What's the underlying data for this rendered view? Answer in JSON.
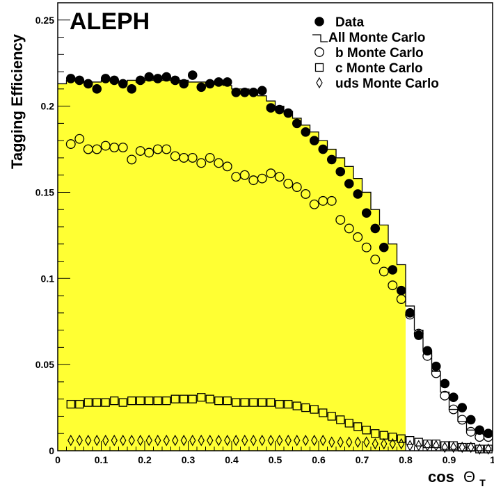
{
  "chart_data": {
    "type": "scatter",
    "title": "ALEPH",
    "xlabel": "cos",
    "xlabel_symbol": "Θ",
    "xlabel_subscript": "T",
    "ylabel": "Tagging Efficiency",
    "xlim": [
      0,
      1
    ],
    "ylim": [
      0,
      0.26
    ],
    "xticks": [
      0,
      0.1,
      0.2,
      0.3,
      0.4,
      0.5,
      0.6,
      0.7,
      0.8,
      0.9,
      1
    ],
    "xtick_labels": [
      "0",
      "0.1",
      "0.2",
      "0.3",
      "0.4",
      "0.5",
      "0.6",
      "0.7",
      "0.8",
      "0.9",
      "1"
    ],
    "yticks": [
      0,
      0.05,
      0.1,
      0.15,
      0.2,
      0.25
    ],
    "ytick_labels": [
      "0",
      "0.05",
      "0.1",
      "0.15",
      "0.2",
      "0.25"
    ],
    "legend_position": "top-right",
    "fill_color": "#ffff33",
    "fill_range": [
      0,
      0.8
    ],
    "x": [
      0.01,
      0.03,
      0.05,
      0.07,
      0.09,
      0.11,
      0.13,
      0.15,
      0.17,
      0.19,
      0.21,
      0.23,
      0.25,
      0.27,
      0.29,
      0.31,
      0.33,
      0.35,
      0.37,
      0.39,
      0.41,
      0.43,
      0.45,
      0.47,
      0.49,
      0.51,
      0.53,
      0.55,
      0.57,
      0.59,
      0.61,
      0.63,
      0.65,
      0.67,
      0.69,
      0.71,
      0.73,
      0.75,
      0.77,
      0.79,
      0.81,
      0.83,
      0.85,
      0.87,
      0.89,
      0.91,
      0.93,
      0.95,
      0.97,
      0.99
    ],
    "series": [
      {
        "name": "Data",
        "marker": "filled-circle",
        "values": [
          null,
          0.216,
          0.215,
          0.213,
          0.21,
          0.216,
          0.215,
          0.213,
          0.21,
          0.215,
          0.217,
          0.216,
          0.217,
          0.215,
          0.213,
          0.218,
          0.211,
          0.213,
          0.214,
          0.214,
          0.208,
          0.208,
          0.208,
          0.209,
          0.199,
          0.198,
          0.196,
          0.19,
          0.185,
          0.18,
          0.175,
          0.169,
          0.162,
          0.155,
          0.149,
          0.138,
          0.129,
          0.118,
          0.105,
          0.093,
          0.08,
          0.067,
          0.058,
          0.049,
          0.039,
          0.031,
          0.025,
          0.018,
          0.012,
          0.01
        ]
      },
      {
        "name": "All Monte Carlo",
        "marker": "histogram",
        "values": [
          0.213,
          0.215,
          0.215,
          0.214,
          0.214,
          0.215,
          0.215,
          0.214,
          0.215,
          0.214,
          0.215,
          0.215,
          0.215,
          0.215,
          0.215,
          0.214,
          0.214,
          0.213,
          0.213,
          0.212,
          0.21,
          0.21,
          0.209,
          0.206,
          0.203,
          0.2,
          0.197,
          0.193,
          0.189,
          0.185,
          0.18,
          0.175,
          0.17,
          0.165,
          0.158,
          0.15,
          0.14,
          0.131,
          0.12,
          0.108,
          0.084,
          0.07,
          0.058,
          0.046,
          0.034,
          0.024,
          0.017,
          0.012,
          0.01,
          0.009
        ]
      },
      {
        "name": "b Monte Carlo",
        "marker": "open-circle",
        "values": [
          null,
          0.178,
          0.181,
          0.175,
          0.175,
          0.177,
          0.176,
          0.176,
          0.169,
          0.174,
          0.173,
          0.175,
          0.175,
          0.171,
          0.17,
          0.17,
          0.167,
          0.17,
          0.167,
          0.165,
          0.159,
          0.16,
          0.157,
          0.158,
          0.161,
          0.159,
          0.155,
          0.153,
          0.149,
          0.143,
          0.145,
          0.145,
          0.134,
          0.129,
          0.124,
          0.118,
          0.111,
          0.104,
          0.096,
          0.088,
          0.079,
          0.068,
          0.055,
          0.045,
          0.032,
          0.024,
          0.018,
          0.011,
          0.008,
          0.008
        ]
      },
      {
        "name": "c Monte Carlo",
        "marker": "open-square",
        "values": [
          null,
          0.027,
          0.027,
          0.028,
          0.028,
          0.028,
          0.029,
          0.028,
          0.029,
          0.029,
          0.029,
          0.029,
          0.029,
          0.03,
          0.03,
          0.03,
          0.031,
          0.03,
          0.029,
          0.029,
          0.028,
          0.028,
          0.028,
          0.028,
          0.028,
          0.027,
          0.027,
          0.026,
          0.025,
          0.024,
          0.022,
          0.02,
          0.018,
          0.016,
          0.014,
          0.012,
          0.01,
          0.009,
          0.008,
          0.007,
          0.006,
          0.005,
          0.004,
          0.004,
          0.003,
          0.003,
          0.002,
          0.002,
          0.001,
          0.001
        ]
      },
      {
        "name": "uds Monte Carlo",
        "marker": "open-diamond",
        "values": [
          null,
          0.006,
          0.006,
          0.006,
          0.006,
          0.006,
          0.006,
          0.006,
          0.006,
          0.006,
          0.006,
          0.006,
          0.006,
          0.006,
          0.006,
          0.006,
          0.006,
          0.006,
          0.006,
          0.006,
          0.006,
          0.006,
          0.006,
          0.006,
          0.006,
          0.006,
          0.006,
          0.006,
          0.006,
          0.006,
          0.006,
          0.005,
          0.005,
          0.005,
          0.005,
          0.005,
          0.004,
          0.004,
          0.004,
          0.004,
          0.003,
          0.003,
          0.003,
          0.003,
          0.002,
          0.002,
          0.002,
          0.002,
          0.001,
          0.001
        ]
      }
    ]
  }
}
